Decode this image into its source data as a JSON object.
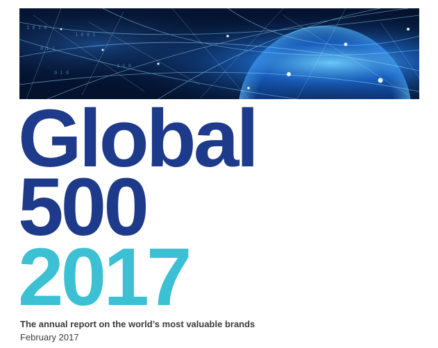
{
  "cover": {
    "title_line1": "Global",
    "title_line2": "500",
    "title_line3": "2017",
    "subtitle": "The annual report on the world’s most valuable brands",
    "date": "February 2017"
  },
  "colors": {
    "primary_navy": "#1e3a8a",
    "accent_teal": "#3cc0d4",
    "text_gray": "#3a3a3a",
    "banner_dark": "#04122e",
    "banner_glow": "#4fb8ff"
  }
}
